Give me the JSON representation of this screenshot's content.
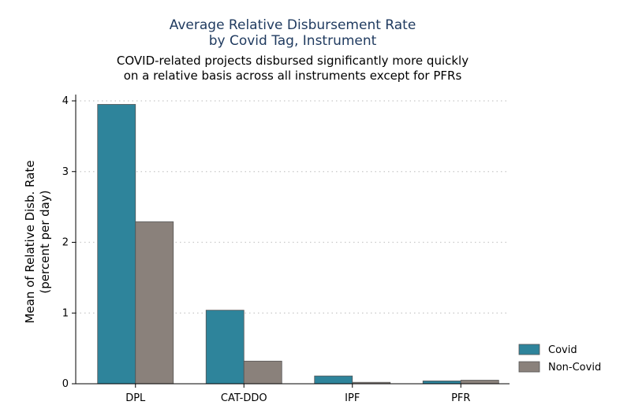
{
  "chart_data": {
    "type": "bar",
    "title": [
      "Average Relative Disbursement Rate",
      "by Covid Tag, Instrument"
    ],
    "subtitle": [
      "COVID-related projects disbursed significantly more quickly",
      "on a relative basis across all instruments except for PFRs"
    ],
    "ylabel": [
      "Mean of Relative Disb. Rate",
      "(percent per day)"
    ],
    "xlabel": "",
    "categories": [
      "DPL",
      "CAT-DDO",
      "IPF",
      "PFR"
    ],
    "series": [
      {
        "name": "Covid",
        "color": "#2e849b",
        "values": [
          3.95,
          1.04,
          0.11,
          0.04
        ]
      },
      {
        "name": "Non-Covid",
        "color": "#8a817b",
        "values": [
          2.29,
          0.32,
          0.02,
          0.05
        ]
      }
    ],
    "ylim": [
      0,
      4
    ],
    "yticks": [
      0,
      1,
      2,
      3,
      4
    ],
    "grid": true,
    "legend_position": "right"
  }
}
